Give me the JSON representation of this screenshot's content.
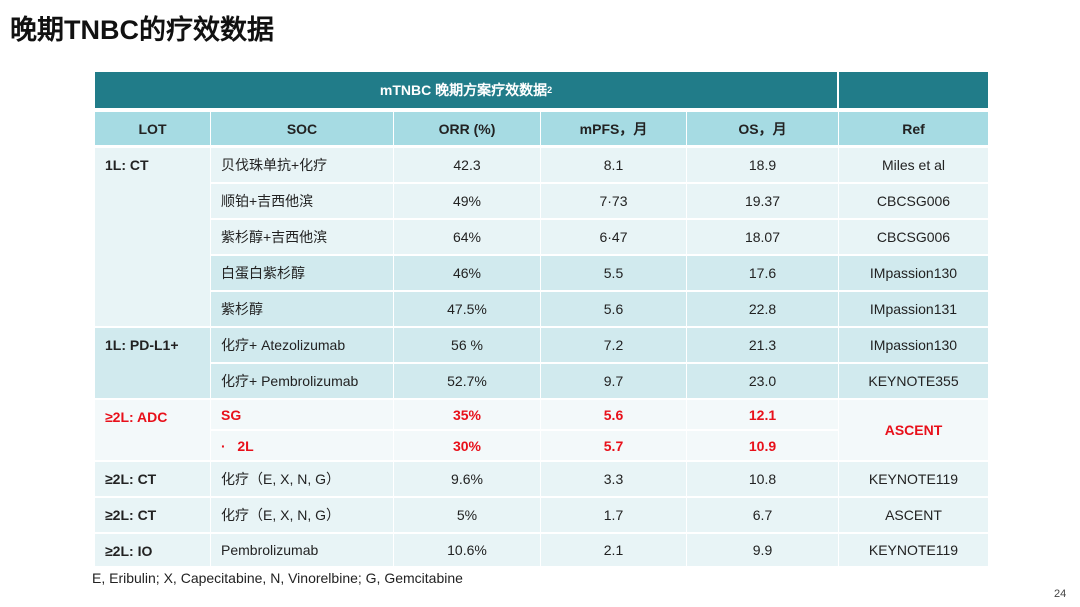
{
  "title": "晚期TNBC的疗效数据",
  "table": {
    "caption": "mTNBC 晚期方案疗效数据",
    "caption_sup": "2",
    "columns": [
      "LOT",
      "SOC",
      "ORR (%)",
      "mPFS，月",
      "OS，月",
      "Ref"
    ],
    "groups": [
      {
        "lot": "1L: CT",
        "rows": [
          [
            "贝伐珠单抗+化疗",
            "42.3",
            "8.1",
            "18.9",
            "Miles et al"
          ],
          [
            "顺铂+吉西他滨",
            "49%",
            "7·73",
            "19.37",
            "CBCSG006"
          ],
          [
            "紫杉醇+吉西他滨",
            "64%",
            "6·47",
            "18.07",
            "CBCSG006"
          ],
          [
            "白蛋白紫杉醇",
            "46%",
            "5.5",
            "17.6",
            "IMpassion130"
          ],
          [
            "紫杉醇",
            "47.5%",
            "5.6",
            "22.8",
            "IMpassion131"
          ]
        ]
      },
      {
        "lot": "1L: PD-L1+",
        "rows": [
          [
            "化疗+ Atezolizumab",
            "56 %",
            "7.2",
            "21.3",
            "IMpassion130"
          ],
          [
            "化疗+ Pembrolizumab",
            "52.7%",
            "9.7",
            "23.0",
            "KEYNOTE355"
          ]
        ]
      },
      {
        "lot": "≥2L: ADC",
        "ref": "ASCENT",
        "color": "#e8101a",
        "rows": [
          [
            "SG",
            "35%",
            "5.6",
            "12.1"
          ],
          [
            "·   2L",
            "30%",
            "5.7",
            "10.9"
          ]
        ]
      },
      {
        "lot": "≥2L: CT",
        "rows": [
          [
            "化疗（E, X, N, G）",
            "9.6%",
            "3.3",
            "10.8",
            "KEYNOTE119"
          ]
        ]
      },
      {
        "lot": "≥2L: CT",
        "rows": [
          [
            "化疗（E, X, N, G）",
            "5%",
            "1.7",
            "6.7",
            "ASCENT"
          ]
        ]
      },
      {
        "lot": "≥2L: IO",
        "rows": [
          [
            "Pembrolizumab",
            "10.6%",
            "2.1",
            "9.9",
            "KEYNOTE119"
          ]
        ]
      }
    ]
  },
  "footnote": "E, Eribulin; X, Capecitabine, N, Vinorelbine; G, Gemcitabine",
  "page_number": "24"
}
